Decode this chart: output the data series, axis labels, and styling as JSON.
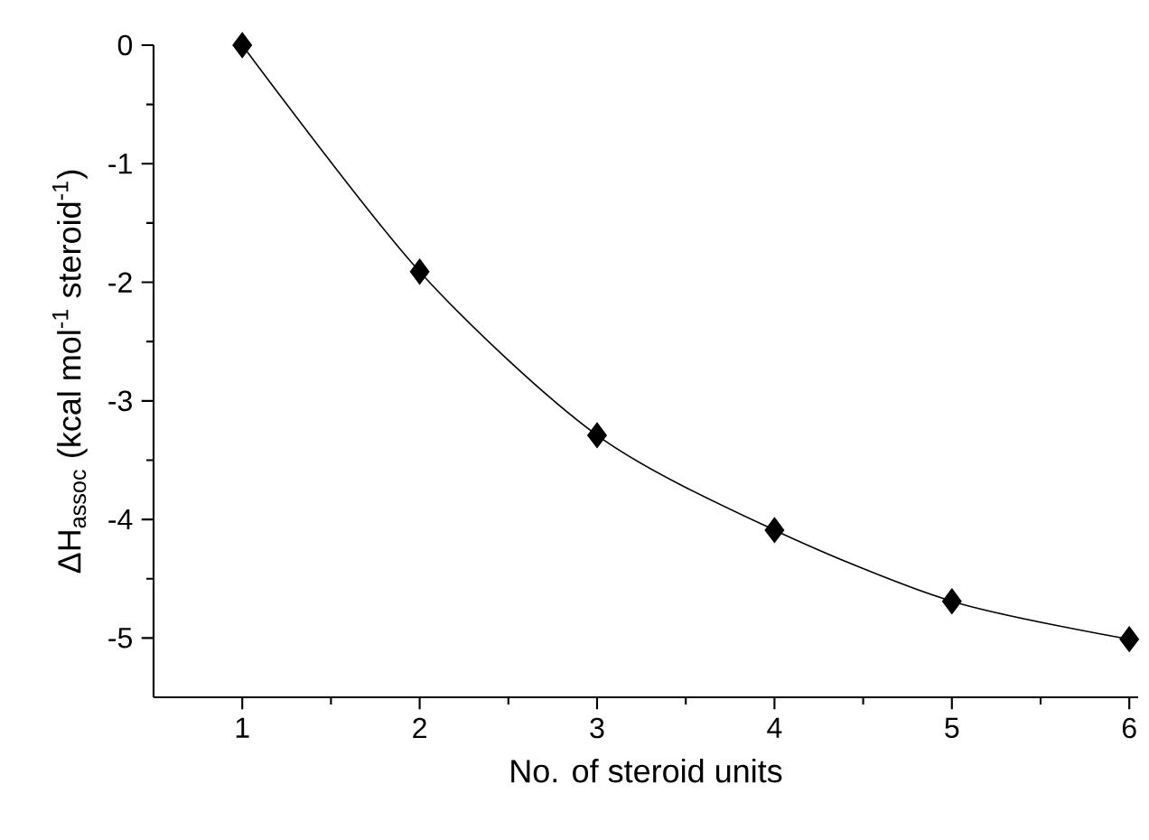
{
  "chart_data": {
    "type": "scatter",
    "xlabel": "No. of steroid units",
    "ylabel": "ΔH$_{assoc}$ (kcal mol$^{-1}$ steroid$^{-1}$)",
    "x": [
      1,
      2,
      3,
      4,
      5,
      6
    ],
    "series": [
      {
        "color": "#000000",
        "marker": "diamond",
        "values": [
          0,
          -1.91,
          -3.29,
          -4.09,
          -4.69,
          -5.01
        ]
      },
      {
        "type": "line",
        "color": "#000000",
        "marker": "none",
        "line_style": "solid",
        "x": [
          1,
          2,
          3,
          4,
          5,
          6
        ],
        "values": [
          0,
          -1.91,
          -3.29,
          -4.09,
          -4.69,
          -5.01
        ]
      }
    ],
    "xlim": [
      0.5,
      6.05
    ],
    "ylim": [
      -5.5,
      0
    ],
    "xticks": [
      1,
      2,
      3,
      4,
      5,
      6
    ],
    "yticks": [
      -5,
      -4,
      -3,
      -2,
      -1,
      0
    ],
    "grid": false
  }
}
